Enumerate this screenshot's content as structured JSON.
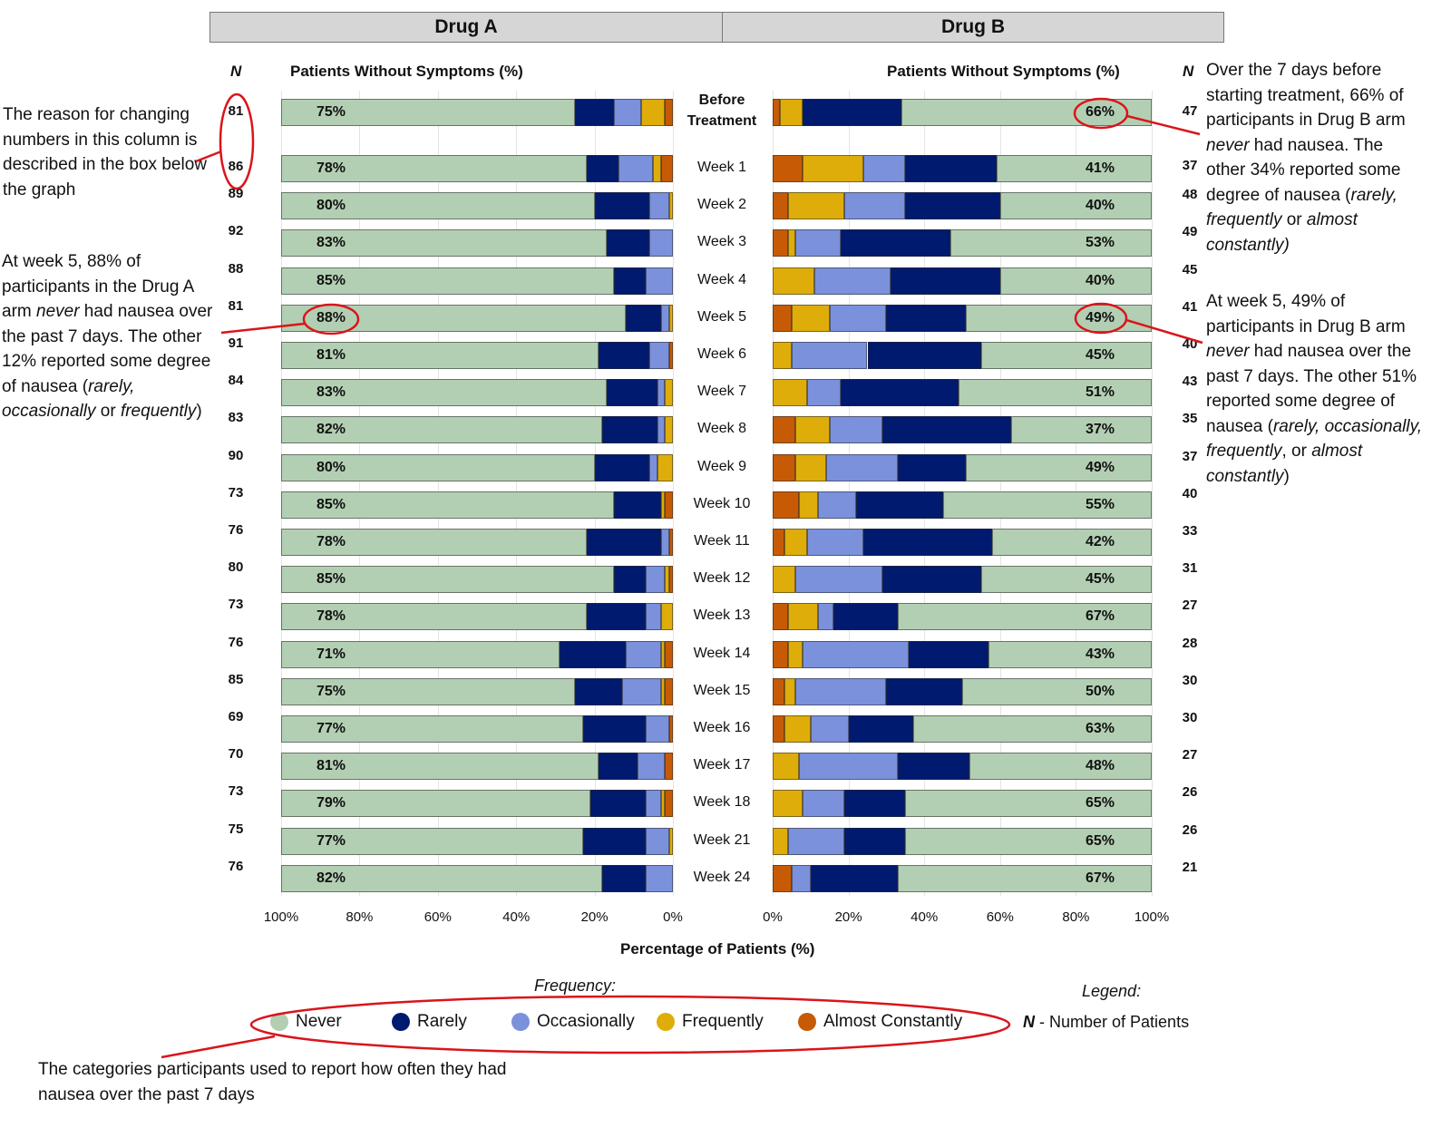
{
  "chart_data": {
    "type": "bar",
    "orientation": "horizontal-stacked",
    "title": "",
    "panels": [
      "Drug A",
      "Drug B"
    ],
    "column_header_left": "Patients Without Symptoms (%)",
    "column_header_right": "Patients Without Symptoms (%)",
    "n_header": "N",
    "xlabel": "Percentage of Patients (%)",
    "xlim": [
      0,
      100
    ],
    "xticks_left": [
      "100%",
      "80%",
      "60%",
      "40%",
      "20%",
      "0%"
    ],
    "xticks_right": [
      "0%",
      "20%",
      "40%",
      "60%",
      "80%",
      "100%"
    ],
    "categories": [
      "Before Treatment",
      "Week 1",
      "Week 2",
      "Week 3",
      "Week 4",
      "Week 5",
      "Week 6",
      "Week 7",
      "Week 8",
      "Week 9",
      "Week 10",
      "Week 11",
      "Week 12",
      "Week 13",
      "Week 14",
      "Week 15",
      "Week 16",
      "Week 17",
      "Week 18",
      "Week 21",
      "Week 24"
    ],
    "series_names": [
      "Never",
      "Rarely",
      "Occasionally",
      "Frequently",
      "Almost Constantly"
    ],
    "series_colors": {
      "Never": "#b3cfb3",
      "Rarely": "#001a70",
      "Occasionally": "#7b91dc",
      "Frequently": "#dfad0a",
      "Almost Constantly": "#c75b05"
    },
    "drug_a": {
      "n": [
        81,
        86,
        89,
        92,
        88,
        81,
        91,
        84,
        83,
        90,
        73,
        76,
        80,
        73,
        76,
        85,
        69,
        70,
        73,
        75,
        76
      ],
      "never_labels": [
        "75%",
        "78%",
        "80%",
        "83%",
        "85%",
        "88%",
        "81%",
        "83%",
        "82%",
        "80%",
        "85%",
        "78%",
        "85%",
        "78%",
        "71%",
        "75%",
        "77%",
        "81%",
        "79%",
        "77%",
        "82%"
      ],
      "series": [
        {
          "name": "Never",
          "values": [
            75,
            78,
            80,
            83,
            85,
            88,
            81,
            83,
            82,
            80,
            85,
            78,
            85,
            78,
            71,
            75,
            77,
            81,
            79,
            77,
            82
          ]
        },
        {
          "name": "Rarely",
          "values": [
            10,
            8,
            14,
            11,
            8,
            9,
            13,
            13,
            14,
            14,
            12,
            19,
            8,
            15,
            17,
            12,
            16,
            10,
            14,
            16,
            11
          ]
        },
        {
          "name": "Occasionally",
          "values": [
            7,
            9,
            5,
            6,
            7,
            2,
            5,
            2,
            2,
            2,
            0,
            2,
            5,
            4,
            9,
            10,
            6,
            7,
            4,
            6,
            7
          ]
        },
        {
          "name": "Frequently",
          "values": [
            6,
            2,
            1,
            0,
            0,
            1,
            0,
            2,
            2,
            4,
            1,
            0,
            1,
            3,
            1,
            1,
            0,
            0,
            1,
            1,
            0
          ]
        },
        {
          "name": "Almost Constantly",
          "values": [
            2,
            3,
            0,
            0,
            0,
            0,
            1,
            0,
            0,
            0,
            2,
            1,
            1,
            0,
            2,
            2,
            1,
            2,
            2,
            0,
            0
          ]
        }
      ]
    },
    "drug_b": {
      "n": [
        47,
        37,
        48,
        49,
        45,
        41,
        40,
        43,
        35,
        37,
        40,
        33,
        31,
        27,
        28,
        30,
        30,
        27,
        26,
        26,
        21
      ],
      "never_labels": [
        "66%",
        "41%",
        "40%",
        "53%",
        "40%",
        "49%",
        "45%",
        "51%",
        "37%",
        "49%",
        "55%",
        "42%",
        "45%",
        "67%",
        "43%",
        "50%",
        "63%",
        "48%",
        "65%",
        "65%",
        "67%"
      ],
      "series": [
        {
          "name": "Never",
          "values": [
            66,
            41,
            40,
            53,
            40,
            49,
            45,
            51,
            37,
            49,
            55,
            42,
            45,
            67,
            43,
            50,
            63,
            48,
            65,
            65,
            67
          ]
        },
        {
          "name": "Rarely",
          "values": [
            26,
            24,
            25,
            29,
            29,
            21,
            30,
            31,
            34,
            18,
            23,
            34,
            26,
            17,
            21,
            20,
            17,
            19,
            16,
            16,
            23
          ]
        },
        {
          "name": "Occasionally",
          "values": [
            0,
            11,
            16,
            12,
            20,
            15,
            20,
            9,
            14,
            19,
            10,
            15,
            23,
            4,
            28,
            24,
            10,
            26,
            11,
            15,
            5
          ]
        },
        {
          "name": "Frequently",
          "values": [
            6,
            16,
            15,
            2,
            11,
            10,
            5,
            9,
            9,
            8,
            5,
            6,
            6,
            8,
            4,
            3,
            7,
            7,
            8,
            4,
            0
          ]
        },
        {
          "name": "Almost Constantly",
          "values": [
            2,
            8,
            4,
            4,
            0,
            5,
            0,
            0,
            6,
            6,
            7,
            3,
            0,
            4,
            4,
            3,
            3,
            0,
            0,
            0,
            5
          ]
        }
      ]
    },
    "highlighted": [
      {
        "panel": "Drug A",
        "category": "Week 5",
        "label": "88%"
      },
      {
        "panel": "Drug B",
        "category": "Before Treatment",
        "label": "66%"
      },
      {
        "panel": "Drug B",
        "category": "Week 5",
        "label": "49%"
      }
    ],
    "legend": {
      "title": "Frequency:",
      "placement": "bottom",
      "items": [
        "Never",
        "Rarely",
        "Occasionally",
        "Frequently",
        "Almost Constantly"
      ],
      "key_title": "Legend:",
      "key_symbol": "N",
      "key_text": " - Number of Patients"
    },
    "grid": true
  },
  "annotations": {
    "n_column_note": "The reason for changing numbers in this column is described in the box below the graph",
    "drug_a_week5_pre": "At week 5, 88% of participants in the Drug A arm ",
    "drug_a_week5_em": "never",
    "drug_a_week5_mid": " had nausea over the past 7 days. The other 12% reported some degree of nausea (",
    "drug_a_week5_em2": "rarely, occasionally",
    "drug_a_week5_mid2": " or ",
    "drug_a_week5_em3": "frequently",
    "drug_a_week5_end": ")",
    "drug_b_before_pre": "Over the 7 days before starting treatment, 66% of participants in Drug B arm ",
    "drug_b_before_em": "never",
    "drug_b_before_mid": " had nausea. The other 34% reported some degree of nausea (",
    "drug_b_before_em2": "rarely, frequently",
    "drug_b_before_mid2": " or ",
    "drug_b_before_em3": "almost constantly)",
    "drug_b_week5_pre": "At week 5, 49% of participants in Drug B arm ",
    "drug_b_week5_em": "never",
    "drug_b_week5_mid": " had nausea over the past 7 days. The other 51% reported some degree of nausea (",
    "drug_b_week5_em2": "rarely, occasionally, frequently",
    "drug_b_week5_mid2": ", or ",
    "drug_b_week5_em3": "almost constantly",
    "drug_b_week5_end": ")",
    "categories_note": "The categories participants used to report how often they had nausea over the past 7 days"
  },
  "colors": {
    "annotation_red": "#d9151b",
    "header_bg": "#d6d6d6"
  }
}
